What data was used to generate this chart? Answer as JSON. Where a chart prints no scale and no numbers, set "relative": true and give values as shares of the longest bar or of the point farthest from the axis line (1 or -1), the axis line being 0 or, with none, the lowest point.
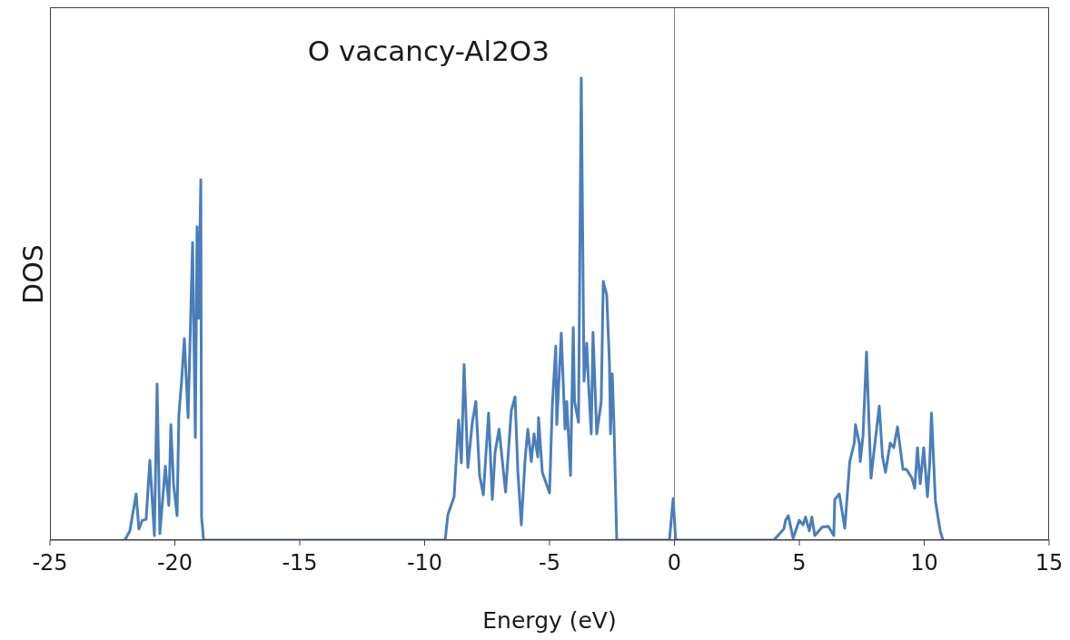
{
  "chart_data": {
    "type": "line",
    "title": "O vacancy-Al2O3",
    "xlabel": "Energy (eV)",
    "ylabel": "DOS",
    "relative": true,
    "xlim": [
      -25,
      15
    ],
    "xticks": [
      -25,
      -20,
      -15,
      -10,
      -5,
      0,
      5,
      10,
      15
    ],
    "marker": "none",
    "line_style": "solid",
    "ref_lines": [
      {
        "axis": "x",
        "value": 0,
        "color": "#808080"
      }
    ],
    "series": [
      {
        "color": "#4a7ebb",
        "x": [
          -22.1,
          -22.0,
          -21.8,
          -21.55,
          -21.44,
          -21.3,
          -21.15,
          -21.0,
          -20.82,
          -20.71,
          -20.6,
          -20.38,
          -20.24,
          -20.16,
          -20.05,
          -19.91,
          -19.84,
          -19.73,
          -19.62,
          -19.47,
          -19.29,
          -19.18,
          -19.11,
          -19.05,
          -18.96,
          -18.93,
          -18.85,
          -9.18,
          -9.07,
          -8.82,
          -8.64,
          -8.53,
          -8.42,
          -8.27,
          -8.09,
          -7.95,
          -7.8,
          -7.65,
          -7.44,
          -7.29,
          -7.18,
          -7.02,
          -6.76,
          -6.53,
          -6.38,
          -6.27,
          -6.13,
          -5.98,
          -5.87,
          -5.73,
          -5.62,
          -5.47,
          -5.44,
          -5.29,
          -5.0,
          -4.89,
          -4.75,
          -4.71,
          -4.53,
          -4.38,
          -4.31,
          -4.16,
          -4.05,
          -4.0,
          -3.84,
          -3.73,
          -3.62,
          -3.51,
          -3.44,
          -3.33,
          -3.26,
          -3.11,
          -2.93,
          -2.85,
          -2.71,
          -2.6,
          -2.56,
          -2.49,
          -2.42,
          -2.31,
          -0.2,
          -0.05,
          0.05,
          3.98,
          4.38,
          4.45,
          4.56,
          4.75,
          5.0,
          5.15,
          5.25,
          5.4,
          5.5,
          5.62,
          5.91,
          6.16,
          6.38,
          6.42,
          6.6,
          6.82,
          7.02,
          7.2,
          7.25,
          7.4,
          7.44,
          7.55,
          7.69,
          7.87,
          7.98,
          8.2,
          8.33,
          8.45,
          8.64,
          8.78,
          8.93,
          9.15,
          9.29,
          9.51,
          9.62,
          9.73,
          9.84,
          9.98,
          10.13,
          10.22,
          10.29,
          10.45,
          10.64,
          10.75
        ],
        "values": [
          0,
          0,
          0.02,
          0.1,
          0.024,
          0.043,
          0.045,
          0.173,
          0.01,
          0.338,
          0.014,
          0.16,
          0.075,
          0.25,
          0.12,
          0.053,
          0.27,
          0.344,
          0.436,
          0.265,
          0.644,
          0.222,
          0.678,
          0.48,
          0.78,
          0.05,
          0,
          0,
          0.055,
          0.094,
          0.26,
          0.167,
          0.38,
          0.157,
          0.255,
          0.3,
          0.14,
          0.098,
          0.275,
          0.088,
          0.19,
          0.24,
          0.104,
          0.28,
          0.31,
          0.15,
          0.033,
          0.173,
          0.24,
          0.17,
          0.23,
          0.18,
          0.265,
          0.147,
          0.102,
          0.29,
          0.42,
          0.25,
          0.448,
          0.24,
          0.3,
          0.14,
          0.46,
          0.3,
          0.255,
          1,
          0.344,
          0.426,
          0.34,
          0.23,
          0.45,
          0.23,
          0.3,
          0.56,
          0.53,
          0.38,
          0.23,
          0.36,
          0.25,
          0,
          0,
          0.09,
          0,
          0,
          0.024,
          0.043,
          0.053,
          0.004,
          0.043,
          0.033,
          0.05,
          0.02,
          0.05,
          0.01,
          0.028,
          0.03,
          0.01,
          0.088,
          0.1,
          0.026,
          0.17,
          0.21,
          0.25,
          0.21,
          0.17,
          0.226,
          0.407,
          0.134,
          0.187,
          0.29,
          0.18,
          0.147,
          0.21,
          0.2,
          0.245,
          0.153,
          0.153,
          0.134,
          0.112,
          0.2,
          0.122,
          0.2,
          0.094,
          0.167,
          0.275,
          0.084,
          0.02,
          0
        ]
      }
    ]
  }
}
